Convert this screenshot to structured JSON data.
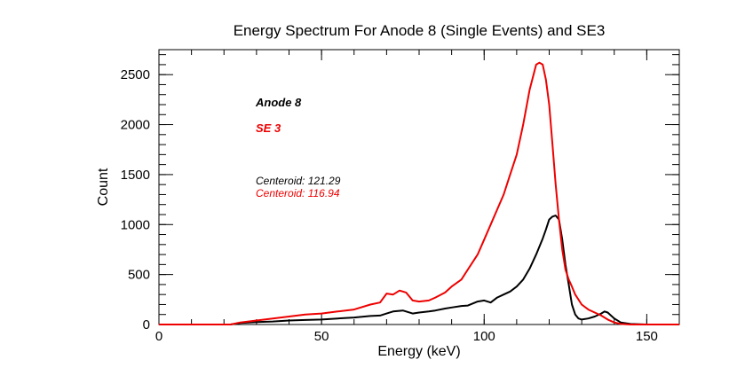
{
  "chart_data": {
    "type": "line",
    "title": "Energy Spectrum For Anode 8 (Single Events) and SE3",
    "xlabel": "Energy (keV)",
    "ylabel": "Count",
    "xlim": [
      0,
      160
    ],
    "ylim": [
      0,
      2750
    ],
    "x_ticks": [
      0,
      50,
      100,
      150
    ],
    "y_ticks": [
      0,
      500,
      1000,
      1500,
      2000,
      2500
    ],
    "x_minor_step": 10,
    "y_minor_step": 100,
    "grid": false,
    "legend": [
      {
        "label": "Anode 8",
        "color": "#000000"
      },
      {
        "label": "SE 3",
        "color": "#ee0000"
      }
    ],
    "annotations": [
      {
        "text": "Centeroid: 121.29",
        "color": "#000000"
      },
      {
        "text": "Centeroid: 116.94",
        "color": "#ee0000"
      }
    ],
    "series": [
      {
        "name": "Anode 8",
        "color": "#000000",
        "x": [
          0,
          22,
          25,
          30,
          35,
          40,
          45,
          50,
          55,
          60,
          65,
          68,
          70,
          72,
          75,
          78,
          80,
          83,
          85,
          88,
          90,
          93,
          95,
          98,
          100,
          102,
          104,
          106,
          108,
          110,
          112,
          114,
          116,
          118,
          119,
          120,
          121,
          122,
          123,
          124,
          125,
          126,
          127,
          128,
          129,
          130,
          132,
          134,
          136,
          137,
          138,
          139,
          140,
          142,
          145,
          150,
          160
        ],
        "y": [
          0,
          0,
          15,
          25,
          30,
          40,
          45,
          50,
          60,
          70,
          85,
          90,
          110,
          130,
          140,
          110,
          120,
          130,
          140,
          160,
          170,
          185,
          190,
          230,
          240,
          220,
          270,
          300,
          330,
          380,
          450,
          560,
          700,
          860,
          950,
          1050,
          1080,
          1090,
          1050,
          850,
          600,
          400,
          200,
          100,
          60,
          50,
          60,
          80,
          110,
          130,
          120,
          90,
          60,
          20,
          5,
          0,
          0
        ]
      },
      {
        "name": "SE 3",
        "color": "#ee0000",
        "x": [
          0,
          22,
          25,
          30,
          35,
          40,
          45,
          50,
          55,
          60,
          65,
          68,
          70,
          72,
          74,
          76,
          78,
          80,
          83,
          85,
          88,
          90,
          93,
          95,
          98,
          100,
          102,
          104,
          106,
          108,
          110,
          112,
          114,
          116,
          117,
          118,
          119,
          120,
          121,
          122,
          123,
          124,
          125,
          126,
          127,
          128,
          130,
          132,
          134,
          136,
          138,
          140,
          142,
          145,
          150,
          160
        ],
        "y": [
          0,
          0,
          20,
          40,
          60,
          80,
          100,
          110,
          130,
          150,
          200,
          220,
          310,
          300,
          340,
          320,
          240,
          230,
          240,
          270,
          320,
          380,
          450,
          550,
          700,
          850,
          1000,
          1150,
          1300,
          1500,
          1700,
          2000,
          2350,
          2600,
          2620,
          2600,
          2450,
          2200,
          1800,
          1400,
          1050,
          750,
          550,
          450,
          380,
          300,
          200,
          150,
          120,
          90,
          50,
          20,
          5,
          0,
          0,
          0
        ]
      }
    ]
  }
}
